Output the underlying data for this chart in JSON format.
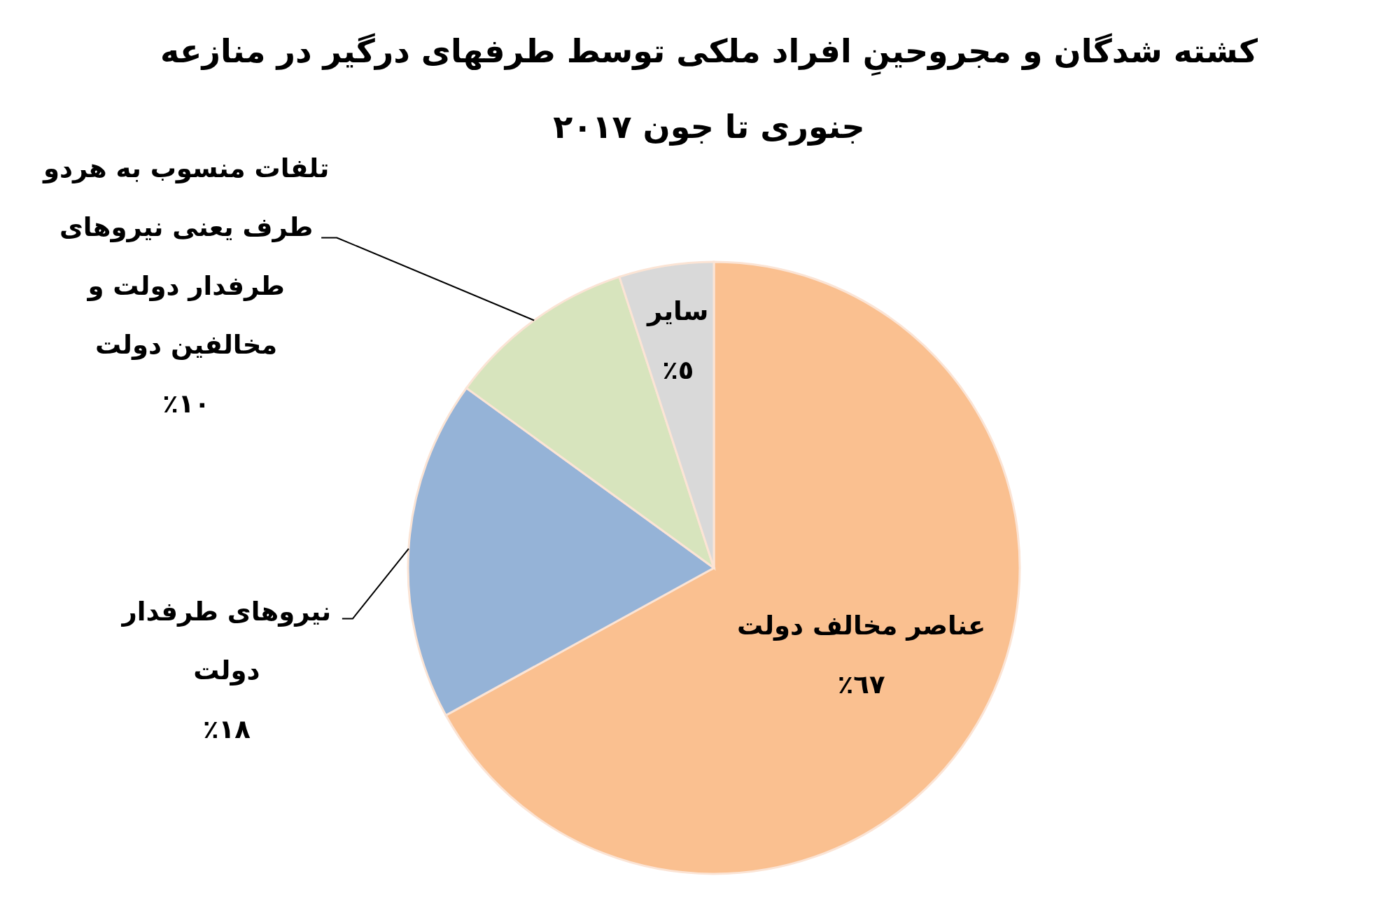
{
  "chart_data": {
    "type": "pie",
    "title": "کشته شدگان و مجروحینِ افراد ملکی توسط طرفهای درگیر در منازعه جنوری تا جون ٢٠١٧",
    "categories": [
      "عناصر مخالف دولت",
      "نیروهای طرفدار دولت",
      "تلفات منسوب به هردو طرف یعنی نیروهای طرفدار دولت و مخالفین دولت",
      "سایر"
    ],
    "values": [
      67,
      18,
      10,
      5
    ],
    "colors": [
      "#fac090",
      "#95b3d7",
      "#d7e4bd",
      "#d9d9d9"
    ],
    "value_labels": [
      "٦٧٪",
      "١٨٪",
      "١٠٪",
      "٥٪"
    ]
  }
}
